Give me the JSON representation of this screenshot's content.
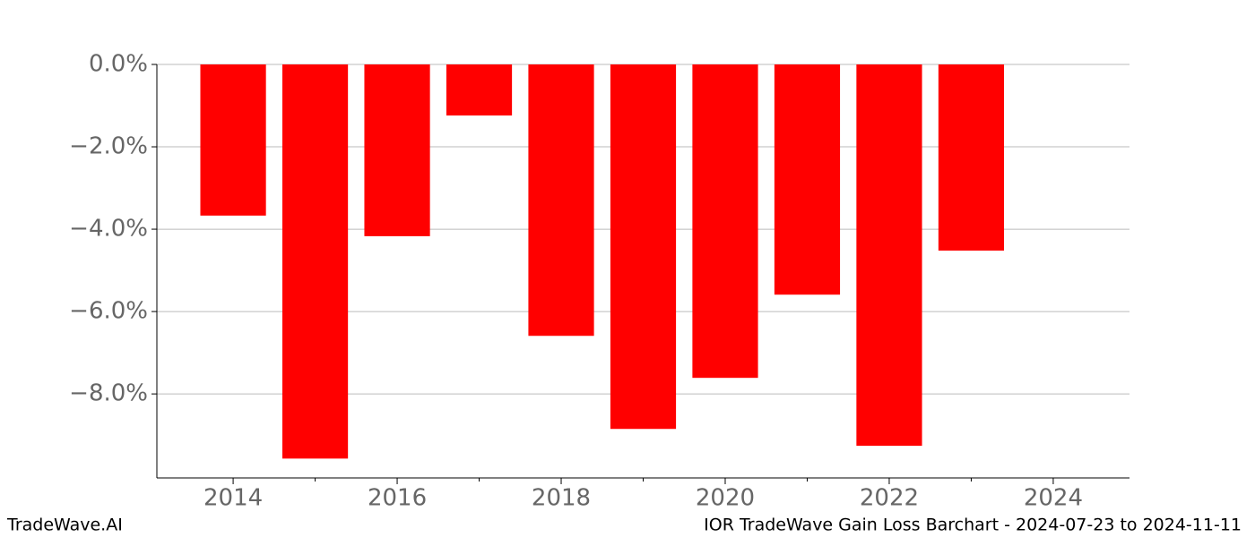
{
  "chart_data": {
    "type": "bar",
    "x": [
      2014,
      2015,
      2016,
      2017,
      2018,
      2019,
      2020,
      2021,
      2022,
      2023
    ],
    "values": [
      -3.67,
      -9.57,
      -4.17,
      -1.24,
      -6.59,
      -8.85,
      -7.61,
      -5.59,
      -9.26,
      -4.52
    ],
    "color": "#ff0000",
    "xlim": [
      2013.07,
      2024.93
    ],
    "xticks": [
      2014,
      2016,
      2018,
      2020,
      2022,
      2024
    ],
    "xminorticks": [
      2015,
      2017,
      2019,
      2021,
      2023
    ],
    "ylim": [
      -10.04,
      0
    ],
    "yticks": [
      {
        "value": 0,
        "label": "0.0%"
      },
      {
        "value": -2,
        "label": "−2.0%"
      },
      {
        "value": -4,
        "label": "−4.0%"
      },
      {
        "value": -6,
        "label": "−6.0%"
      },
      {
        "value": -8,
        "label": "−8.0%"
      }
    ],
    "grid": true
  },
  "footer": {
    "left": "TradeWave.AI",
    "right": "IOR TradeWave Gain Loss Barchart - 2024-07-23 to 2024-11-11"
  }
}
